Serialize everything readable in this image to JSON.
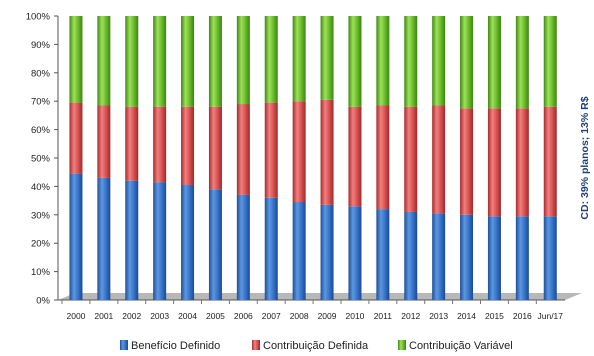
{
  "chart_data": {
    "type": "bar",
    "stacked": true,
    "percent": true,
    "categories": [
      "2000",
      "2001",
      "2002",
      "2003",
      "2004",
      "2005",
      "2006",
      "2007",
      "2008",
      "2009",
      "2010",
      "2011",
      "2012",
      "2013",
      "2014",
      "2015",
      "2016",
      "Jun/17"
    ],
    "series": [
      {
        "name": "Benefício Definido",
        "color": "#2f6fc4",
        "values": [
          44.5,
          43,
          42,
          41.5,
          40.5,
          39,
          37,
          36,
          34.5,
          33.5,
          33,
          32,
          31,
          30.5,
          30,
          29.5,
          29.5,
          29.5
        ]
      },
      {
        "name": "Contribuição Definida",
        "color": "#d94a4a",
        "values": [
          25,
          25.5,
          26,
          26.5,
          27.5,
          29,
          32,
          33.5,
          35.5,
          37,
          35,
          36.5,
          37,
          38,
          37.5,
          38,
          38,
          38.5
        ]
      },
      {
        "name": "Contribuição Variável",
        "color": "#6cba2c",
        "values": [
          30.5,
          31.5,
          32,
          32,
          32,
          32,
          31,
          30.5,
          30,
          29.5,
          32,
          31.5,
          32,
          31.5,
          32.5,
          32.5,
          32.5,
          32
        ]
      }
    ],
    "yticks": [
      "0%",
      "10%",
      "20%",
      "30%",
      "40%",
      "50%",
      "60%",
      "70%",
      "80%",
      "90%",
      "100%"
    ],
    "ylim": [
      0,
      100
    ],
    "grid": false,
    "legend": "bottom",
    "side_annotation": "CD: 39% planos; 13% R$"
  }
}
